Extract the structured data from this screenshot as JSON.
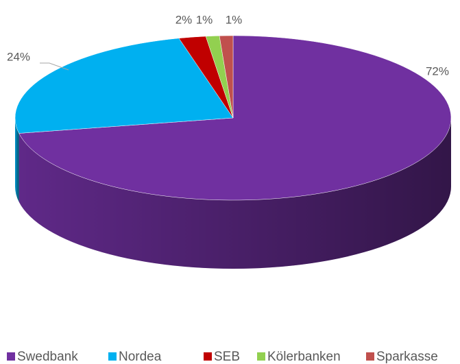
{
  "chart_data": {
    "type": "pie",
    "categories": [
      "Swedbank",
      "Nordea",
      "SEB",
      "Kölerbanken",
      "Sparkasse"
    ],
    "values": [
      72,
      24,
      2,
      1,
      1
    ],
    "value_labels": [
      "72%",
      "24%",
      "2%",
      "1%",
      "1%"
    ],
    "colors": [
      "#7030a0",
      "#00b0f0",
      "#c00000",
      "#92d050",
      "#c0504d"
    ],
    "legend": "bottom"
  }
}
